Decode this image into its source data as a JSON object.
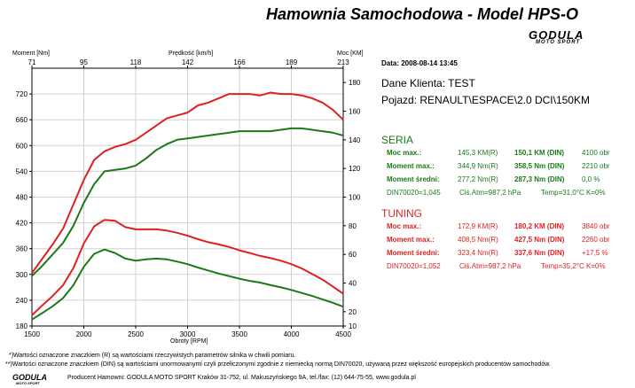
{
  "header": {
    "title": "Hamownia Samochodowa   -   Model HPS-O",
    "logo_main": "GODULA",
    "logo_sub": "MOTO SPORT"
  },
  "axes": {
    "left_label": "Moment [Nm]",
    "right_label": "Moc [KM]",
    "top_label": "Prędkość [km/h]",
    "bottom_label": "Obroty [RPM]"
  },
  "info": {
    "date_line": "Data: 2008-08-14  13:45",
    "client_line": "Dane Klienta: TEST",
    "vehicle_line": "Pojazd: RENAULT\\ESPACE\\2.0 DCI\\150KM"
  },
  "seria": {
    "heading": "SERIA",
    "rows": [
      {
        "label": "Moc max.:",
        "r_value": "145,3 KM(R)",
        "din_value": "150,1 KM (DIN)",
        "extra": "4100 obr"
      },
      {
        "label": "Moment max.:",
        "r_value": "344,9 Nm(R)",
        "din_value": "358,5 Nm (DIN)",
        "extra": "2210 obr"
      },
      {
        "label": "Moment średni:",
        "r_value": "277,2 Nm(R)",
        "din_value": "287,3 Nm (DIN)",
        "extra": "0,0 %"
      }
    ],
    "din_line": {
      "din": "DIN70020=1,045",
      "atm": "Ciś.Atm=987,2 hPa",
      "temp": "Temp=31,0°C  K=0%"
    }
  },
  "tuning": {
    "heading": "TUNING",
    "rows": [
      {
        "label": "Moc max.:",
        "r_value": "172,9 KM(R)",
        "din_value": "180,2 KM (DIN)",
        "extra": "3840 obr"
      },
      {
        "label": "Moment max.:",
        "r_value": "408,5 Nm(R)",
        "din_value": "427,5 Nm (DIN)",
        "extra": "2260 obr"
      },
      {
        "label": "Moment średni:",
        "r_value": "323,4 Nm(R)",
        "din_value": "337,6 Nm (DIN)",
        "extra": "+17,5 %"
      }
    ],
    "din_line": {
      "din": "DIN70020=1,052",
      "atm": "Ciś.Atm=987,2 hPa",
      "temp": "Temp=35,2°C  K=0%"
    }
  },
  "footer": {
    "note1": "*)Wartości oznaczone znaczkiem (R) są wartościami rzeczywistych parametrów silnika w chwili pomiaru.",
    "note2": "**)Wartości oznaczone znaczkiem (DIN) są wartościami unormowanymi czyli przeliczonymi zgodnie z niemiecką normą DIN70020, używaną przez większość europejskich producentów samochodów.",
    "producer": "Producent Hamowni: GODULA MOTO SPORT Kraków 31-752, ul. Makuszyńskiego 9A, tel./fax: (12) 644-75-55, www.godula.pl",
    "logo_main": "GODULA",
    "logo_sub": "MOTO SPORT"
  },
  "colors": {
    "seria": "#1a7a1a",
    "tuning": "#e02020",
    "grid": "#d0d0d0"
  },
  "chart_data": {
    "type": "line",
    "x_label": "Obroty [RPM]",
    "x_range": [
      1500,
      4500
    ],
    "x_ticks": [
      1500,
      2000,
      2500,
      3000,
      3500,
      4000,
      4500
    ],
    "y_left_label": "Moment [Nm]",
    "y_left_range": [
      180,
      780
    ],
    "y_left_ticks": [
      180,
      240,
      300,
      360,
      420,
      480,
      540,
      600,
      660,
      720
    ],
    "y_right_label": "Moc [KM]",
    "y_right_range": [
      10,
      190
    ],
    "y_right_ticks": [
      10,
      20,
      40,
      60,
      80,
      100,
      120,
      140,
      160,
      180
    ],
    "top_label": "Prędkość [km/h]",
    "top_ticks": [
      71,
      95,
      118,
      142,
      166,
      189,
      213
    ],
    "series": [
      {
        "name": "Tuning moc",
        "color": "#e02020",
        "axis": "right",
        "x": [
          1500,
          1600,
          1700,
          1800,
          1900,
          2000,
          2100,
          2200,
          2300,
          2400,
          2500,
          2600,
          2700,
          2800,
          2900,
          3000,
          3100,
          3200,
          3300,
          3400,
          3500,
          3600,
          3700,
          3800,
          3900,
          4000,
          4100,
          4200,
          4300,
          4400,
          4500
        ],
        "values": [
          47,
          57,
          67,
          78,
          95,
          112,
          126,
          132,
          135,
          137,
          140,
          145,
          150,
          155,
          157,
          159,
          164,
          166,
          169,
          172,
          172,
          172,
          171,
          173,
          172,
          172,
          171,
          169,
          166,
          161,
          154
        ]
      },
      {
        "name": "Seria moc",
        "color": "#1a7a1a",
        "axis": "right",
        "x": [
          1500,
          1600,
          1700,
          1800,
          1900,
          2000,
          2100,
          2200,
          2300,
          2400,
          2500,
          2600,
          2700,
          2800,
          2900,
          3000,
          3100,
          3200,
          3300,
          3400,
          3500,
          3600,
          3700,
          3800,
          3900,
          4000,
          4100,
          4200,
          4300,
          4400,
          4500
        ],
        "values": [
          45,
          52,
          60,
          68,
          80,
          96,
          109,
          118,
          119,
          120,
          122,
          127,
          133,
          137,
          140,
          141,
          142,
          143,
          144,
          145,
          146,
          146,
          146,
          146,
          147,
          148,
          148,
          147,
          146,
          145,
          143
        ]
      },
      {
        "name": "Tuning moment",
        "color": "#e02020",
        "axis": "left",
        "x": [
          1500,
          1600,
          1700,
          1800,
          1900,
          2000,
          2100,
          2200,
          2300,
          2400,
          2500,
          2600,
          2700,
          2800,
          2900,
          3000,
          3100,
          3200,
          3300,
          3400,
          3500,
          3600,
          3700,
          3800,
          3900,
          4000,
          4100,
          4200,
          4300,
          4400,
          4500
        ],
        "values": [
          205,
          228,
          250,
          275,
          315,
          372,
          412,
          427,
          425,
          410,
          405,
          405,
          405,
          402,
          397,
          390,
          382,
          375,
          370,
          364,
          356,
          350,
          343,
          338,
          332,
          324,
          314,
          301,
          288,
          272,
          255
        ]
      },
      {
        "name": "Seria moment",
        "color": "#1a7a1a",
        "axis": "left",
        "x": [
          1500,
          1600,
          1700,
          1800,
          1900,
          2000,
          2100,
          2200,
          2300,
          2400,
          2500,
          2600,
          2700,
          2800,
          2900,
          3000,
          3100,
          3200,
          3300,
          3400,
          3500,
          3600,
          3700,
          3800,
          3900,
          4000,
          4100,
          4200,
          4300,
          4400,
          4500
        ],
        "values": [
          195,
          210,
          226,
          245,
          275,
          318,
          348,
          358,
          350,
          337,
          332,
          335,
          337,
          335,
          330,
          324,
          316,
          309,
          302,
          296,
          290,
          285,
          281,
          275,
          270,
          264,
          257,
          250,
          242,
          234,
          225
        ]
      }
    ]
  }
}
